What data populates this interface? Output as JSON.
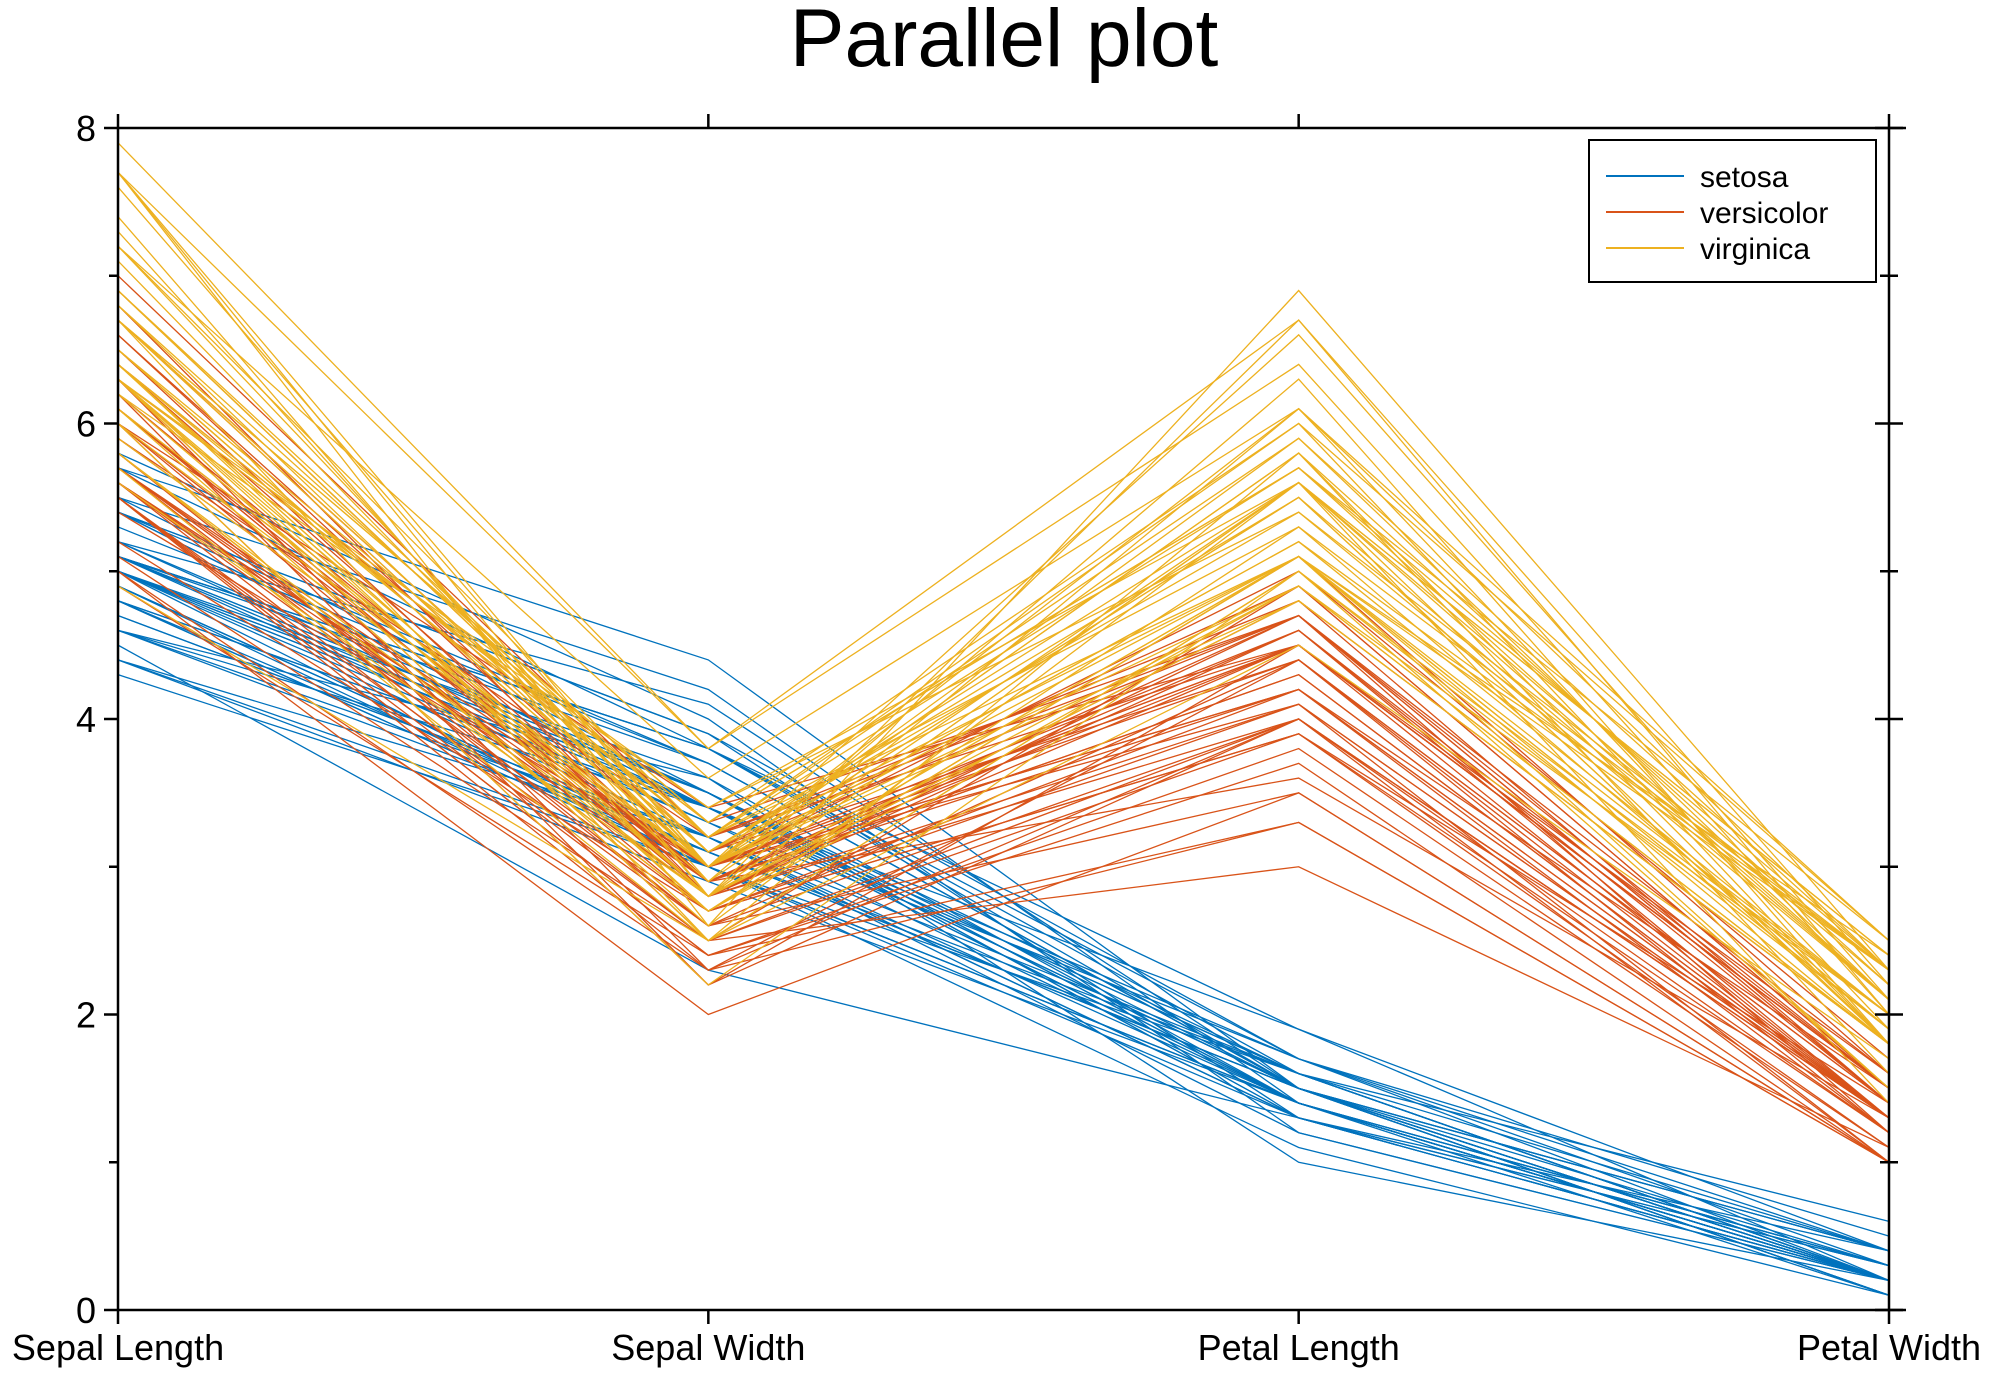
{
  "chart_data": {
    "type": "line",
    "subtype": "parallel-coordinates",
    "title": "Parallel plot",
    "categories": [
      "Sepal Length",
      "Sepal Width",
      "Petal Length",
      "Petal Width"
    ],
    "ylim": [
      0,
      8
    ],
    "yticks": [
      "0",
      "2",
      "4",
      "6",
      "8"
    ],
    "grid": false,
    "legend_position": "top-right",
    "series": [
      {
        "name": "setosa",
        "color": "#0072BD",
        "rows": [
          [
            5.1,
            3.5,
            1.4,
            0.2
          ],
          [
            4.9,
            3.0,
            1.4,
            0.2
          ],
          [
            4.7,
            3.2,
            1.3,
            0.2
          ],
          [
            4.6,
            3.1,
            1.5,
            0.2
          ],
          [
            5.0,
            3.6,
            1.4,
            0.2
          ],
          [
            5.4,
            3.9,
            1.7,
            0.4
          ],
          [
            4.6,
            3.4,
            1.4,
            0.3
          ],
          [
            5.0,
            3.4,
            1.5,
            0.2
          ],
          [
            4.4,
            2.9,
            1.4,
            0.2
          ],
          [
            4.9,
            3.1,
            1.5,
            0.1
          ],
          [
            5.4,
            3.7,
            1.5,
            0.2
          ],
          [
            4.8,
            3.4,
            1.6,
            0.2
          ],
          [
            4.8,
            3.0,
            1.4,
            0.1
          ],
          [
            4.3,
            3.0,
            1.1,
            0.1
          ],
          [
            5.8,
            4.0,
            1.2,
            0.2
          ],
          [
            5.7,
            4.4,
            1.5,
            0.4
          ],
          [
            5.4,
            3.9,
            1.3,
            0.4
          ],
          [
            5.1,
            3.5,
            1.4,
            0.3
          ],
          [
            5.7,
            3.8,
            1.7,
            0.3
          ],
          [
            5.1,
            3.8,
            1.5,
            0.3
          ],
          [
            5.4,
            3.4,
            1.7,
            0.2
          ],
          [
            5.1,
            3.7,
            1.5,
            0.4
          ],
          [
            4.6,
            3.6,
            1.0,
            0.2
          ],
          [
            5.1,
            3.3,
            1.7,
            0.5
          ],
          [
            4.8,
            3.4,
            1.9,
            0.2
          ],
          [
            5.0,
            3.0,
            1.6,
            0.2
          ],
          [
            5.0,
            3.4,
            1.6,
            0.4
          ],
          [
            5.2,
            3.5,
            1.5,
            0.2
          ],
          [
            5.2,
            3.4,
            1.4,
            0.2
          ],
          [
            4.7,
            3.2,
            1.6,
            0.2
          ],
          [
            4.8,
            3.1,
            1.6,
            0.2
          ],
          [
            5.4,
            3.4,
            1.5,
            0.4
          ],
          [
            5.2,
            4.1,
            1.5,
            0.1
          ],
          [
            5.5,
            4.2,
            1.4,
            0.2
          ],
          [
            4.9,
            3.1,
            1.5,
            0.1
          ],
          [
            5.0,
            3.2,
            1.2,
            0.2
          ],
          [
            5.5,
            3.5,
            1.3,
            0.2
          ],
          [
            4.9,
            3.1,
            1.5,
            0.1
          ],
          [
            4.4,
            3.0,
            1.3,
            0.2
          ],
          [
            5.1,
            3.4,
            1.5,
            0.2
          ],
          [
            5.0,
            3.5,
            1.3,
            0.3
          ],
          [
            4.5,
            2.3,
            1.3,
            0.3
          ],
          [
            4.4,
            3.2,
            1.3,
            0.2
          ],
          [
            5.0,
            3.5,
            1.6,
            0.6
          ],
          [
            5.1,
            3.8,
            1.9,
            0.4
          ],
          [
            4.8,
            3.0,
            1.4,
            0.3
          ],
          [
            5.1,
            3.8,
            1.6,
            0.2
          ],
          [
            4.6,
            3.2,
            1.4,
            0.2
          ],
          [
            5.3,
            3.7,
            1.5,
            0.2
          ],
          [
            5.0,
            3.3,
            1.4,
            0.2
          ]
        ]
      },
      {
        "name": "versicolor",
        "color": "#D95319",
        "rows": [
          [
            7.0,
            3.2,
            4.7,
            1.4
          ],
          [
            6.4,
            3.2,
            4.5,
            1.5
          ],
          [
            6.9,
            3.1,
            4.9,
            1.5
          ],
          [
            5.5,
            2.3,
            4.0,
            1.3
          ],
          [
            6.5,
            2.8,
            4.6,
            1.5
          ],
          [
            5.7,
            2.8,
            4.5,
            1.3
          ],
          [
            6.3,
            3.3,
            4.7,
            1.6
          ],
          [
            4.9,
            2.4,
            3.3,
            1.0
          ],
          [
            6.6,
            2.9,
            4.6,
            1.3
          ],
          [
            5.2,
            2.7,
            3.9,
            1.4
          ],
          [
            5.0,
            2.0,
            3.5,
            1.0
          ],
          [
            5.9,
            3.0,
            4.2,
            1.5
          ],
          [
            6.0,
            2.2,
            4.0,
            1.0
          ],
          [
            6.1,
            2.9,
            4.7,
            1.4
          ],
          [
            5.6,
            2.9,
            3.6,
            1.3
          ],
          [
            6.7,
            3.1,
            4.4,
            1.4
          ],
          [
            5.6,
            3.0,
            4.5,
            1.5
          ],
          [
            5.8,
            2.7,
            4.1,
            1.0
          ],
          [
            6.2,
            2.2,
            4.5,
            1.5
          ],
          [
            5.6,
            2.5,
            3.9,
            1.1
          ],
          [
            5.9,
            3.2,
            4.8,
            1.8
          ],
          [
            6.1,
            2.8,
            4.0,
            1.3
          ],
          [
            6.3,
            2.5,
            4.9,
            1.5
          ],
          [
            6.1,
            2.8,
            4.7,
            1.2
          ],
          [
            6.4,
            2.9,
            4.3,
            1.3
          ],
          [
            6.6,
            3.0,
            4.4,
            1.4
          ],
          [
            6.8,
            2.8,
            4.8,
            1.4
          ],
          [
            6.7,
            3.0,
            5.0,
            1.7
          ],
          [
            6.0,
            2.9,
            4.5,
            1.5
          ],
          [
            5.7,
            2.6,
            3.5,
            1.0
          ],
          [
            5.5,
            2.4,
            3.8,
            1.1
          ],
          [
            5.5,
            2.4,
            3.7,
            1.0
          ],
          [
            5.8,
            2.7,
            3.9,
            1.2
          ],
          [
            6.0,
            2.7,
            5.1,
            1.6
          ],
          [
            5.4,
            3.0,
            4.5,
            1.5
          ],
          [
            6.0,
            3.4,
            4.5,
            1.6
          ],
          [
            6.7,
            3.1,
            4.7,
            1.5
          ],
          [
            6.3,
            2.3,
            4.4,
            1.3
          ],
          [
            5.6,
            3.0,
            4.1,
            1.3
          ],
          [
            5.5,
            2.5,
            4.0,
            1.3
          ],
          [
            5.5,
            2.6,
            4.4,
            1.2
          ],
          [
            6.1,
            3.0,
            4.6,
            1.4
          ],
          [
            5.8,
            2.6,
            4.0,
            1.2
          ],
          [
            5.0,
            2.3,
            3.3,
            1.0
          ],
          [
            5.6,
            2.7,
            4.2,
            1.3
          ],
          [
            5.7,
            3.0,
            4.2,
            1.2
          ],
          [
            5.7,
            2.9,
            4.2,
            1.3
          ],
          [
            6.2,
            2.9,
            4.3,
            1.3
          ],
          [
            5.1,
            2.5,
            3.0,
            1.1
          ],
          [
            5.7,
            2.8,
            4.1,
            1.3
          ]
        ]
      },
      {
        "name": "virginica",
        "color": "#EDB120",
        "rows": [
          [
            6.3,
            3.3,
            6.0,
            2.5
          ],
          [
            5.8,
            2.7,
            5.1,
            1.9
          ],
          [
            7.1,
            3.0,
            5.9,
            2.1
          ],
          [
            6.3,
            2.9,
            5.6,
            1.8
          ],
          [
            6.5,
            3.0,
            5.8,
            2.2
          ],
          [
            7.6,
            3.0,
            6.6,
            2.1
          ],
          [
            4.9,
            2.5,
            4.5,
            1.7
          ],
          [
            7.3,
            2.9,
            6.3,
            1.8
          ],
          [
            6.7,
            2.5,
            5.8,
            1.8
          ],
          [
            7.2,
            3.6,
            6.1,
            2.5
          ],
          [
            6.5,
            3.2,
            5.1,
            2.0
          ],
          [
            6.4,
            2.7,
            5.3,
            1.9
          ],
          [
            6.8,
            3.0,
            5.5,
            2.1
          ],
          [
            5.7,
            2.5,
            5.0,
            2.0
          ],
          [
            5.8,
            2.8,
            5.1,
            2.4
          ],
          [
            6.4,
            3.2,
            5.3,
            2.3
          ],
          [
            6.5,
            3.0,
            5.5,
            1.8
          ],
          [
            7.7,
            3.8,
            6.7,
            2.2
          ],
          [
            7.7,
            2.6,
            6.9,
            2.3
          ],
          [
            6.0,
            2.2,
            5.0,
            1.5
          ],
          [
            6.9,
            3.2,
            5.7,
            2.3
          ],
          [
            5.6,
            2.8,
            4.9,
            2.0
          ],
          [
            7.7,
            2.8,
            6.7,
            2.0
          ],
          [
            6.3,
            2.7,
            4.9,
            1.8
          ],
          [
            6.7,
            3.3,
            5.7,
            2.1
          ],
          [
            7.2,
            3.2,
            6.0,
            1.8
          ],
          [
            6.2,
            2.8,
            4.8,
            1.8
          ],
          [
            6.1,
            3.0,
            4.9,
            1.8
          ],
          [
            6.4,
            2.8,
            5.6,
            2.1
          ],
          [
            7.2,
            3.0,
            5.8,
            1.6
          ],
          [
            7.4,
            2.8,
            6.1,
            1.9
          ],
          [
            7.9,
            3.8,
            6.4,
            2.0
          ],
          [
            6.4,
            2.8,
            5.6,
            2.2
          ],
          [
            6.3,
            2.8,
            5.1,
            1.5
          ],
          [
            6.1,
            2.6,
            5.6,
            1.4
          ],
          [
            7.7,
            3.0,
            6.1,
            2.3
          ],
          [
            6.3,
            3.4,
            5.6,
            2.4
          ],
          [
            6.4,
            3.1,
            5.5,
            1.8
          ],
          [
            6.0,
            3.0,
            4.8,
            1.8
          ],
          [
            6.9,
            3.1,
            5.4,
            2.1
          ],
          [
            6.7,
            3.1,
            5.6,
            2.4
          ],
          [
            6.9,
            3.1,
            5.1,
            2.3
          ],
          [
            5.8,
            2.7,
            5.1,
            1.9
          ],
          [
            6.8,
            3.2,
            5.9,
            2.3
          ],
          [
            6.7,
            3.3,
            5.7,
            2.5
          ],
          [
            6.7,
            3.0,
            5.2,
            2.3
          ],
          [
            6.3,
            2.5,
            5.0,
            1.9
          ],
          [
            6.5,
            3.0,
            5.2,
            2.0
          ],
          [
            6.2,
            3.4,
            5.4,
            2.3
          ],
          [
            5.9,
            3.0,
            5.1,
            1.8
          ]
        ]
      }
    ]
  }
}
